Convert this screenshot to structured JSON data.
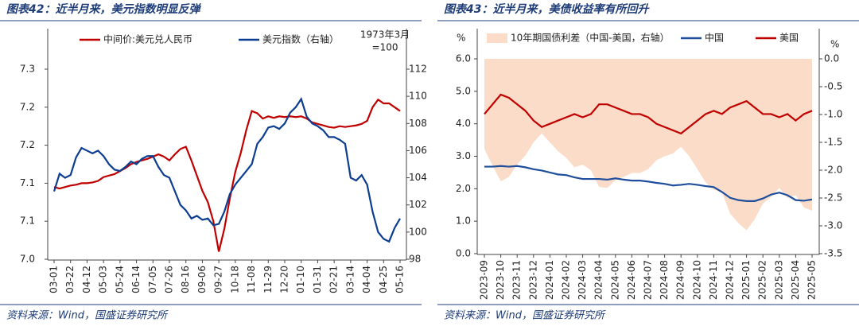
{
  "chart_data": [
    {
      "type": "line",
      "title": "图表42：近半月来，美元指数明显反弹",
      "source": "资料来源：Wind，国盛证券研究所",
      "annotation": [
        "1973年3月",
        "=100"
      ],
      "categories": [
        "03-01",
        null,
        null,
        "03-22",
        null,
        null,
        "04-12",
        null,
        null,
        "05-03",
        null,
        null,
        "05-24",
        null,
        null,
        "06-14",
        null,
        null,
        "07-05",
        null,
        null,
        "07-26",
        null,
        null,
        "08-16",
        null,
        null,
        "09-06",
        null,
        null,
        "09-27",
        null,
        null,
        "10-18",
        null,
        null,
        "11-08",
        null,
        null,
        "11-29",
        null,
        null,
        "12-20",
        null,
        null,
        "01-10",
        null,
        null,
        "01-31",
        null,
        null,
        "02-21",
        null,
        null,
        "03-14",
        null,
        null,
        "04-04",
        null,
        null,
        "04-25",
        null,
        null,
        "05-16"
      ],
      "series": [
        {
          "name": "中间价:美元兑人民币",
          "color": "#c00000",
          "values": [
            7.095,
            7.093,
            7.095,
            7.097,
            7.098,
            7.1,
            7.1,
            7.101,
            7.103,
            7.108,
            7.11,
            7.112,
            7.116,
            7.12,
            7.125,
            7.128,
            7.13,
            7.132,
            7.135,
            7.138,
            7.135,
            7.13,
            7.138,
            7.145,
            7.148,
            7.13,
            7.11,
            7.09,
            7.075,
            7.05,
            7.01,
            7.04,
            7.08,
            7.115,
            7.14,
            7.17,
            7.195,
            7.192,
            7.185,
            7.188,
            7.186,
            7.188,
            7.187,
            7.188,
            7.187,
            7.188,
            7.185,
            7.18,
            7.178,
            7.176,
            7.174,
            7.173,
            7.175,
            7.174,
            7.175,
            7.176,
            7.178,
            7.182,
            7.2,
            7.21,
            7.205,
            7.205,
            7.2,
            7.195
          ]
        },
        {
          "name": "美元指数（右轴）",
          "color": "#0b3d91",
          "axis": "y2",
          "values": [
            103.0,
            104.3,
            104.0,
            104.2,
            105.5,
            106.2,
            106.0,
            105.8,
            106.0,
            105.6,
            105.0,
            104.6,
            104.5,
            104.8,
            105.2,
            105.0,
            105.4,
            105.6,
            105.6,
            104.8,
            104.2,
            104.0,
            103.0,
            102.0,
            101.6,
            101.0,
            101.2,
            100.9,
            101.0,
            100.5,
            100.6,
            101.5,
            102.8,
            103.5,
            104.0,
            104.5,
            105.0,
            106.5,
            107.0,
            107.7,
            107.8,
            107.6,
            108.0,
            108.8,
            109.2,
            109.8,
            108.5,
            108.0,
            107.8,
            107.5,
            107.0,
            107.0,
            106.8,
            106.5,
            104.0,
            103.8,
            104.2,
            103.5,
            101.5,
            100.0,
            99.5,
            99.3,
            100.3,
            101.0
          ]
        }
      ],
      "ylim": [
        7.0,
        7.25
      ],
      "yticks": [
        {
          "value": 7.0,
          "label": "7.0"
        },
        {
          "value": 7.05,
          "label": "7.1"
        },
        {
          "value": 7.1,
          "label": "7.1"
        },
        {
          "value": 7.15,
          "label": "7.2"
        },
        {
          "value": 7.2,
          "label": "7.2"
        },
        {
          "value": 7.25,
          "label": "7.3"
        }
      ],
      "y2lim": [
        98,
        112
      ],
      "y2ticks": [
        98,
        100,
        102,
        104,
        106,
        108,
        110,
        112
      ],
      "grid": false
    },
    {
      "type": "line",
      "title": "图表43：近半月来，美债收益率有所回升",
      "source": "资料来源：Wind，国盛证券研究所",
      "y_label": "%",
      "y2_label": "%",
      "categories": [
        "2023-09",
        null,
        "2023-10",
        null,
        "2023-11",
        null,
        "2023-12",
        null,
        "2024-01",
        null,
        "2024-02",
        null,
        "2024-03",
        null,
        "2024-04",
        null,
        "2024-05",
        null,
        "2024-06",
        null,
        "2024-07",
        null,
        "2024-08",
        null,
        "2024-09",
        null,
        "2024-10",
        null,
        "2024-11",
        null,
        "2024-12",
        null,
        "2025-01",
        null,
        "2025-02",
        null,
        "2025-03",
        null,
        "2025-04",
        null,
        "2025-05"
      ],
      "series": [
        {
          "name": "10年期国债利差（中国-美国，右轴）",
          "type": "area",
          "color": "#fbdcc8",
          "axis": "y2",
          "values": [
            -1.62,
            -1.92,
            -2.2,
            -2.12,
            -1.9,
            -1.74,
            -1.5,
            -1.34,
            -1.5,
            -1.66,
            -1.78,
            -1.95,
            -1.9,
            -2.0,
            -2.3,
            -2.32,
            -2.18,
            -2.12,
            -2.05,
            -2.05,
            -1.98,
            -1.82,
            -1.75,
            -1.7,
            -1.58,
            -1.75,
            -1.98,
            -2.22,
            -2.35,
            -2.4,
            -2.78,
            -2.95,
            -3.08,
            -2.88,
            -2.6,
            -2.48,
            -2.32,
            -2.5,
            -2.45,
            -2.67,
            -2.73
          ]
        },
        {
          "name": "中国",
          "color": "#1f4e9c",
          "values": [
            2.68,
            2.68,
            2.7,
            2.68,
            2.7,
            2.66,
            2.6,
            2.56,
            2.5,
            2.44,
            2.42,
            2.35,
            2.3,
            2.3,
            2.3,
            2.28,
            2.32,
            2.28,
            2.25,
            2.25,
            2.22,
            2.18,
            2.15,
            2.1,
            2.12,
            2.15,
            2.12,
            2.08,
            2.05,
            1.9,
            1.72,
            1.65,
            1.62,
            1.62,
            1.7,
            1.82,
            1.88,
            1.8,
            1.65,
            1.63,
            1.67
          ]
        },
        {
          "name": "美国",
          "color": "#c00000",
          "values": [
            4.3,
            4.6,
            4.9,
            4.8,
            4.6,
            4.4,
            4.1,
            3.9,
            4.0,
            4.1,
            4.2,
            4.3,
            4.2,
            4.3,
            4.6,
            4.6,
            4.5,
            4.4,
            4.3,
            4.3,
            4.2,
            4.0,
            3.9,
            3.8,
            3.7,
            3.9,
            4.1,
            4.3,
            4.4,
            4.3,
            4.5,
            4.6,
            4.7,
            4.5,
            4.3,
            4.3,
            4.2,
            4.3,
            4.1,
            4.3,
            4.4
          ]
        }
      ],
      "ylim": [
        0,
        6
      ],
      "yticks": [
        {
          "value": 0,
          "label": "0.0"
        },
        {
          "value": 1,
          "label": "1.0"
        },
        {
          "value": 2,
          "label": "2.0"
        },
        {
          "value": 3,
          "label": "3.0"
        },
        {
          "value": 4,
          "label": "4.0"
        },
        {
          "value": 5,
          "label": "5.0"
        },
        {
          "value": 6,
          "label": "6.0"
        }
      ],
      "y2lim": [
        -3.5,
        0
      ],
      "y2ticks": [
        {
          "value": 0,
          "label": "0.0"
        },
        -0.5,
        {
          "value": -1,
          "label": "-1.0"
        },
        -1.5,
        {
          "value": -2,
          "label": "-2.0"
        },
        -2.5,
        {
          "value": -3,
          "label": "-3.0"
        },
        -3.5
      ],
      "grid": false
    }
  ]
}
